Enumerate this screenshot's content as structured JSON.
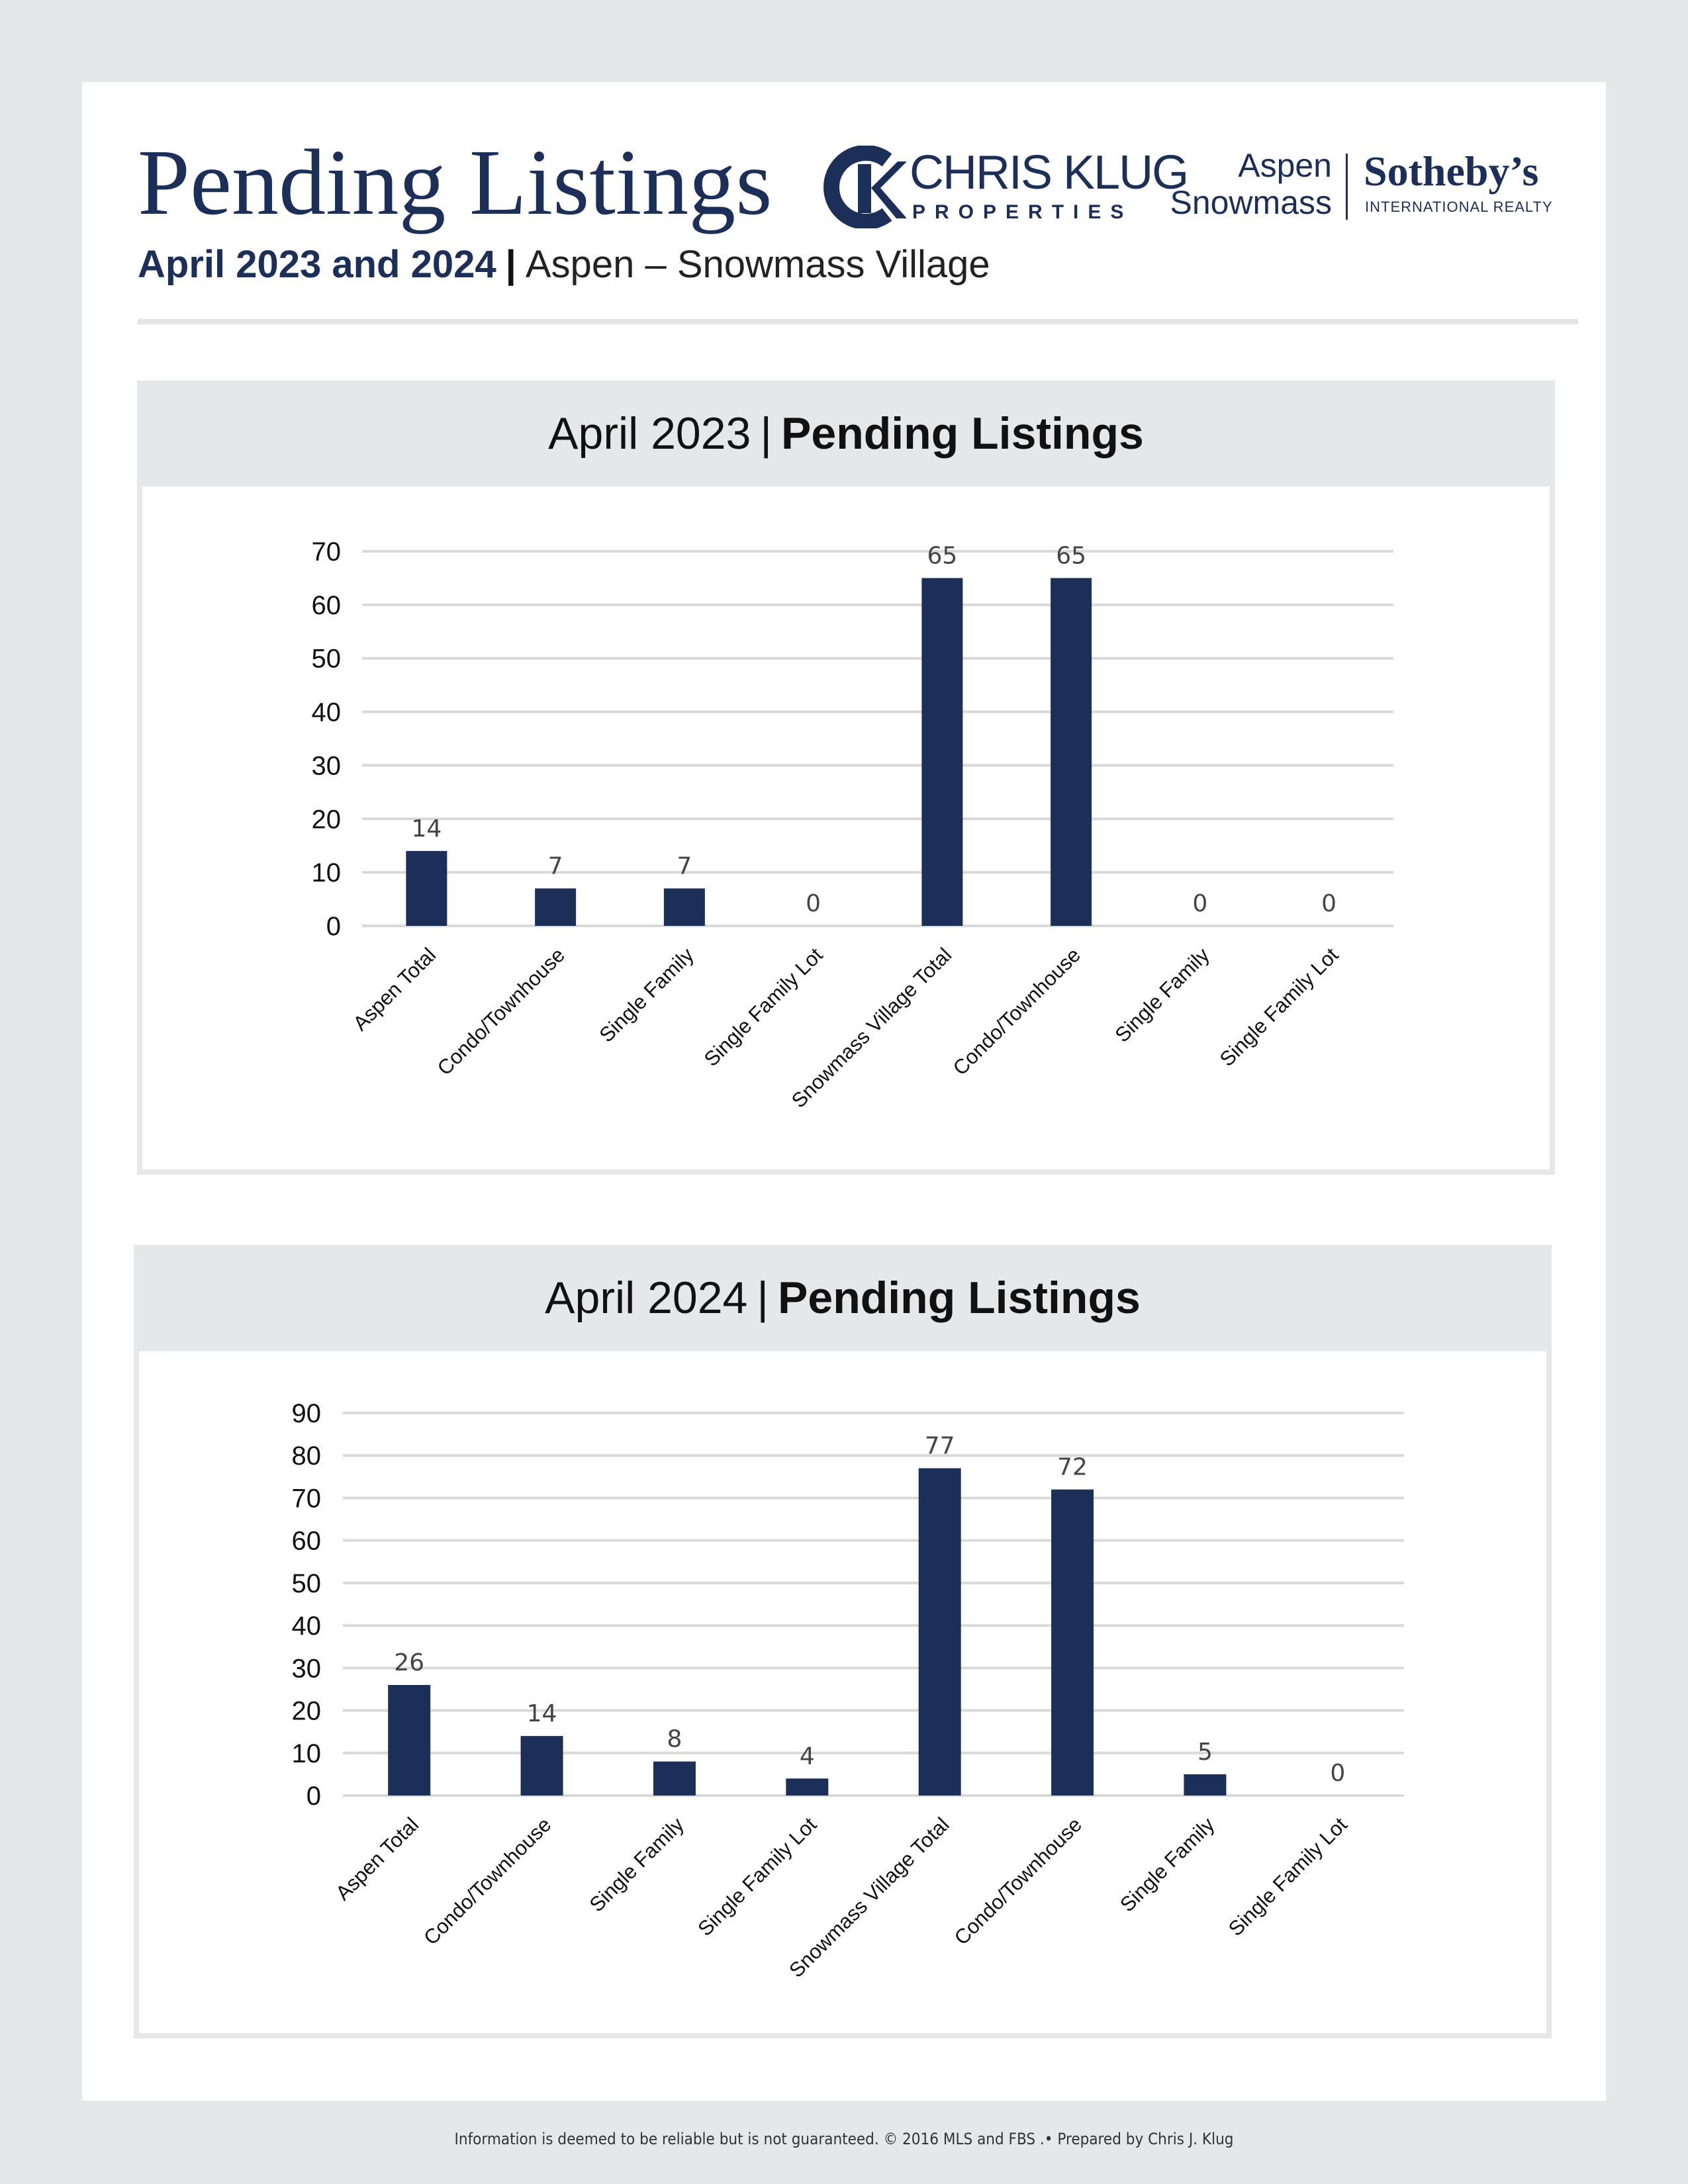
{
  "header": {
    "title": "Pending Listings",
    "subtitle_bold": "April 2023 and 2024",
    "subtitle_sep": "|",
    "subtitle_place": "Aspen – Snowmass Village"
  },
  "logos": {
    "chris_klug": {
      "name": "CHRIS KLUG",
      "sub": "PROPERTIES",
      "icon": "ck-monogram-icon"
    },
    "sothebys": {
      "line1": "Aspen",
      "line2": "Snowmass",
      "brand": "Sotheby’s",
      "sub": "INTERNATIONAL REALTY"
    }
  },
  "panels": [
    {
      "title_plain": "April 2023",
      "title_sep": "|",
      "title_bold": "Pending Listings"
    },
    {
      "title_plain": "April 2024",
      "title_sep": "|",
      "title_bold": "Pending Listings"
    }
  ],
  "colors": {
    "bar": "#1b2f58",
    "grid": "#d9d9d9",
    "label": "#444444"
  },
  "chart_data": [
    {
      "type": "bar",
      "categories": [
        "Aspen Total",
        "Condo/Townhouse",
        "Single Family",
        "Single Family Lot",
        "Snowmass Village Total",
        "Condo/Townhouse",
        "Single Family",
        "Single Family Lot"
      ],
      "values": [
        14,
        7,
        7,
        0,
        65,
        65,
        0,
        0
      ],
      "yticks": [
        0,
        10,
        20,
        30,
        40,
        50,
        60,
        70
      ],
      "ylim": [
        0,
        70
      ],
      "grid": true,
      "data_labels": true
    },
    {
      "type": "bar",
      "categories": [
        "Aspen Total",
        "Condo/Townhouse",
        "Single Family",
        "Single Family Lot",
        "Snowmass Village Total",
        "Condo/Townhouse",
        "Single Family",
        "Single Family Lot"
      ],
      "values": [
        26,
        14,
        8,
        4,
        77,
        72,
        5,
        0
      ],
      "yticks": [
        0,
        10,
        20,
        30,
        40,
        50,
        60,
        70,
        80,
        90
      ],
      "ylim": [
        0,
        90
      ],
      "grid": true,
      "data_labels": true
    }
  ],
  "footer": "Information is deemed to be reliable but is not guaranteed. © 2016 MLS and FBS .• Prepared by Chris J. Klug"
}
